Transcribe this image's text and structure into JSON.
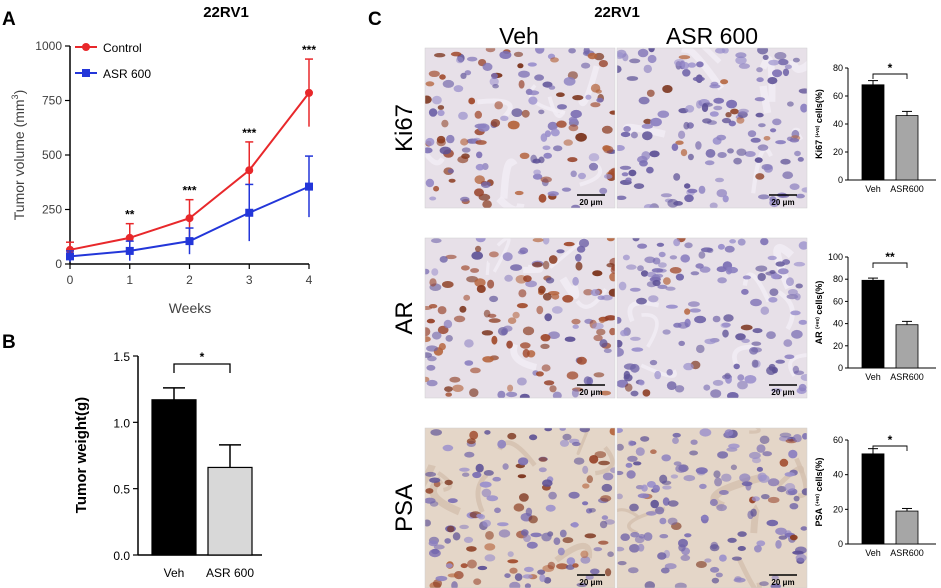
{
  "panels": {
    "a": {
      "letter": "A",
      "title": "22RV1",
      "chart_data": {
        "type": "line",
        "ylabel_main": "Tumor volume (mm",
        "ylabel_sup": "3",
        "ylabel_close": ")",
        "xlabel": "Weeks",
        "x": [
          0,
          1,
          2,
          3,
          4
        ],
        "xlim": [
          0,
          4
        ],
        "ylim": [
          0,
          1000
        ],
        "yticks": [
          0,
          250,
          500,
          750,
          1000
        ],
        "legend": "top-left",
        "series": [
          {
            "name": "Control",
            "color": "#e8282b",
            "values": [
              65,
              120,
              210,
              430,
              785
            ],
            "err": [
              35,
              65,
              85,
              130,
              155
            ]
          },
          {
            "name": "ASR 600",
            "color": "#2336d9",
            "values": [
              35,
              60,
              105,
              235,
              355
            ],
            "err": [
              25,
              45,
              60,
              130,
              140
            ]
          }
        ],
        "significance": [
          "",
          "**",
          "***",
          "***",
          "***"
        ]
      }
    },
    "b": {
      "letter": "B",
      "chart_data": {
        "type": "bar",
        "ylabel": "Tumor weight(g)",
        "categories": [
          "Veh",
          "ASR 600"
        ],
        "values": [
          1.17,
          0.66
        ],
        "err": [
          0.09,
          0.17
        ],
        "colors": [
          "#000000",
          "#d8d8d8"
        ],
        "ylim": [
          0,
          1.5
        ],
        "yticks": [
          "0.0",
          "0.5",
          "1.0",
          "1.5"
        ],
        "significance": "*"
      }
    },
    "c": {
      "letter": "C",
      "title": "22RV1",
      "columns": [
        "Veh",
        "ASR 600"
      ],
      "scale_bar": "20 μm",
      "rows": [
        {
          "label": "Ki67",
          "chart_data": {
            "type": "bar",
            "ylabel_pre": "Ki67 ",
            "ylabel_sup": "(+ve)",
            "ylabel_post": " cells(%)",
            "categories": [
              "Veh",
              "ASR600"
            ],
            "values": [
              68,
              46
            ],
            "err": [
              3,
              3
            ],
            "colors": [
              "#000000",
              "#a6a6a6"
            ],
            "ylim": [
              0,
              80
            ],
            "yticks": [
              "0",
              "20",
              "40",
              "60",
              "80"
            ],
            "significance": "*"
          }
        },
        {
          "label": "AR",
          "chart_data": {
            "type": "bar",
            "ylabel_pre": "AR ",
            "ylabel_sup": "(+ve)",
            "ylabel_post": " cells(%)",
            "categories": [
              "Veh",
              "ASR600"
            ],
            "values": [
              79,
              39
            ],
            "err": [
              2,
              3
            ],
            "colors": [
              "#000000",
              "#a6a6a6"
            ],
            "ylim": [
              0,
              100
            ],
            "yticks": [
              "0",
              "20",
              "40",
              "60",
              "80",
              "100"
            ],
            "significance": "**"
          }
        },
        {
          "label": "PSA",
          "chart_data": {
            "type": "bar",
            "ylabel_pre": "PSA ",
            "ylabel_sup": "(+ve)",
            "ylabel_post": " cells(%)",
            "categories": [
              "Veh",
              "ASR600"
            ],
            "values": [
              52,
              19
            ],
            "err": [
              3,
              1.5
            ],
            "colors": [
              "#000000",
              "#a6a6a6"
            ],
            "ylim": [
              0,
              60
            ],
            "yticks": [
              "0",
              "20",
              "40",
              "60"
            ],
            "significance": "*"
          }
        }
      ]
    }
  },
  "colors": {
    "tissue_bg": "#e7e0e8",
    "hematoxylin": "#7f72b4",
    "dab": "#8e3a22",
    "dab_light": "#b98260"
  }
}
